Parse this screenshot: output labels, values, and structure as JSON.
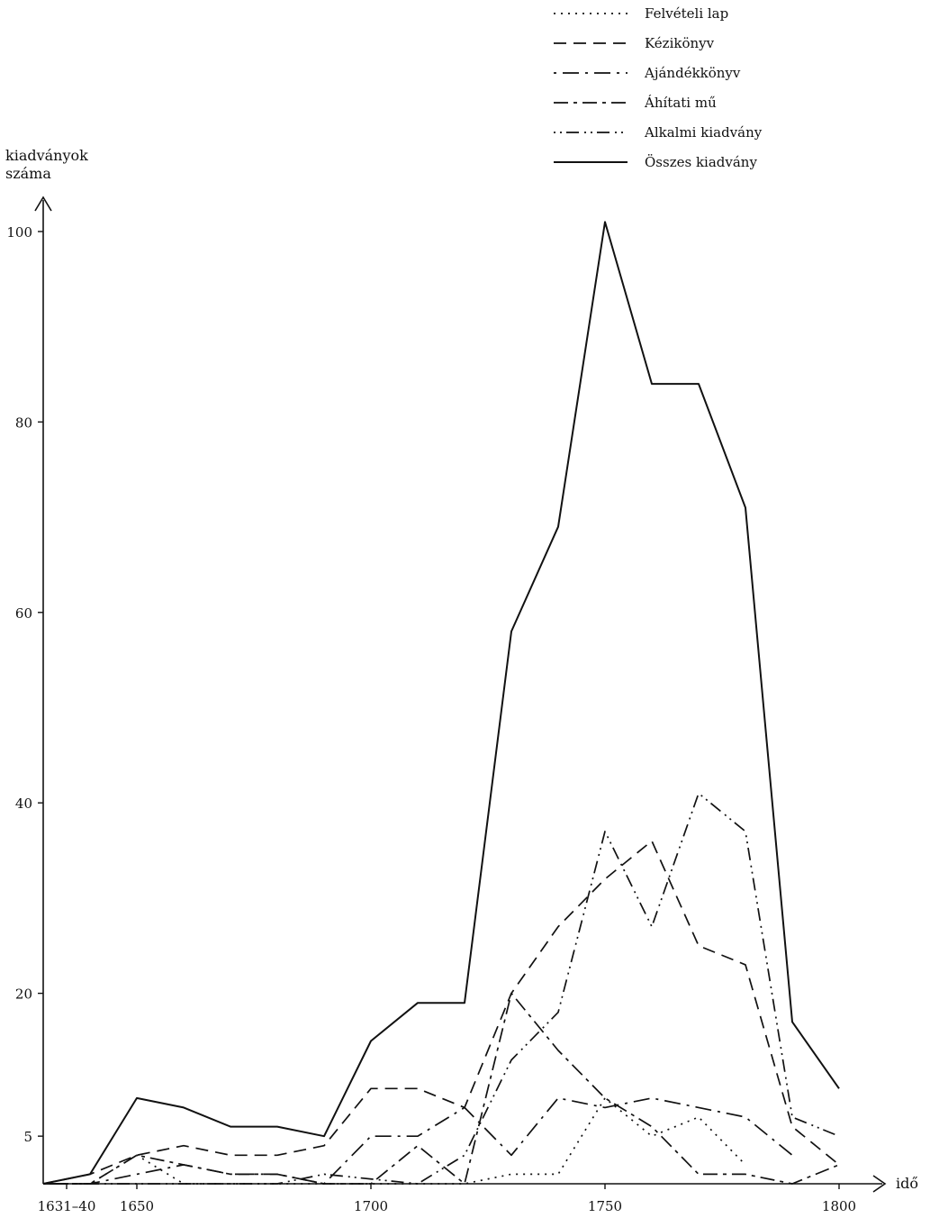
{
  "chart_data": {
    "type": "line",
    "ylabel_line1": "kiadványok",
    "ylabel_line2": "száma",
    "xlabel": "idő",
    "xlim": [
      1630,
      1800
    ],
    "ylim": [
      0,
      100
    ],
    "x_ticks": [
      {
        "value": 1635,
        "label": "1631–40"
      },
      {
        "value": 1650,
        "label": "1650"
      },
      {
        "value": 1700,
        "label": "1700"
      },
      {
        "value": 1750,
        "label": "1750"
      },
      {
        "value": 1800,
        "label": "1800"
      }
    ],
    "y_ticks": [
      {
        "value": 5,
        "label": "5"
      },
      {
        "value": 20,
        "label": "20"
      },
      {
        "value": 40,
        "label": "40"
      },
      {
        "value": 60,
        "label": "60"
      },
      {
        "value": 80,
        "label": "80"
      },
      {
        "value": 100,
        "label": "100"
      }
    ],
    "legend_position": "top-right",
    "series": [
      {
        "name": "Felvételi lap",
        "dash": "2,6",
        "points": [
          [
            1630,
            0
          ],
          [
            1640,
            0
          ],
          [
            1650,
            3
          ],
          [
            1660,
            0
          ],
          [
            1720,
            0
          ],
          [
            1730,
            1
          ],
          [
            1740,
            1
          ],
          [
            1750,
            9
          ],
          [
            1760,
            5
          ],
          [
            1770,
            7
          ],
          [
            1780,
            2
          ]
        ]
      },
      {
        "name": "Kézikönyv",
        "dash": "14,8",
        "points": [
          [
            1630,
            0
          ],
          [
            1640,
            1
          ],
          [
            1650,
            3
          ],
          [
            1660,
            4
          ],
          [
            1670,
            3
          ],
          [
            1680,
            3
          ],
          [
            1690,
            4
          ],
          [
            1700,
            10
          ],
          [
            1710,
            10
          ],
          [
            1720,
            8
          ],
          [
            1730,
            20
          ],
          [
            1740,
            27
          ],
          [
            1750,
            32
          ],
          [
            1760,
            36
          ],
          [
            1770,
            25
          ],
          [
            1780,
            23
          ],
          [
            1790,
            6
          ],
          [
            1800,
            2
          ]
        ]
      },
      {
        "name": "Ajándékkönyv",
        "dash": "3,7,18,7",
        "points": [
          [
            1630,
            0
          ],
          [
            1640,
            0
          ],
          [
            1650,
            1
          ],
          [
            1660,
            2
          ],
          [
            1670,
            1
          ],
          [
            1680,
            1
          ],
          [
            1690,
            0
          ],
          [
            1700,
            5
          ],
          [
            1710,
            5
          ],
          [
            1720,
            8
          ],
          [
            1730,
            3
          ],
          [
            1740,
            9
          ],
          [
            1750,
            8
          ],
          [
            1760,
            9
          ],
          [
            1770,
            8
          ],
          [
            1780,
            7
          ],
          [
            1790,
            3
          ]
        ]
      },
      {
        "name": "Áhítati mű",
        "dash": "16,6,4,6",
        "points": [
          [
            1630,
            0
          ],
          [
            1640,
            0
          ],
          [
            1650,
            3
          ],
          [
            1660,
            2
          ],
          [
            1670,
            1
          ],
          [
            1680,
            1
          ],
          [
            1690,
            0
          ],
          [
            1700,
            0
          ],
          [
            1710,
            4
          ],
          [
            1720,
            0
          ],
          [
            1730,
            20
          ],
          [
            1740,
            14
          ],
          [
            1750,
            9
          ],
          [
            1760,
            6
          ],
          [
            1770,
            1
          ],
          [
            1780,
            1
          ],
          [
            1790,
            0
          ],
          [
            1800,
            2
          ]
        ]
      },
      {
        "name": "Alkalmi kiadvány",
        "dash": "2,5,2,5,14,6",
        "points": [
          [
            1630,
            0
          ],
          [
            1640,
            0
          ],
          [
            1650,
            0
          ],
          [
            1660,
            0
          ],
          [
            1670,
            0
          ],
          [
            1680,
            0
          ],
          [
            1690,
            1
          ],
          [
            1710,
            0
          ],
          [
            1720,
            3
          ],
          [
            1730,
            13
          ],
          [
            1740,
            18
          ],
          [
            1750,
            37
          ],
          [
            1760,
            27
          ],
          [
            1770,
            41
          ],
          [
            1780,
            37
          ],
          [
            1790,
            7
          ],
          [
            1800,
            5
          ]
        ]
      },
      {
        "name": "Összes kiadvány",
        "dash": "",
        "points": [
          [
            1630,
            0
          ],
          [
            1640,
            1
          ],
          [
            1650,
            9
          ],
          [
            1660,
            8
          ],
          [
            1670,
            6
          ],
          [
            1680,
            6
          ],
          [
            1690,
            5
          ],
          [
            1700,
            15
          ],
          [
            1710,
            19
          ],
          [
            1720,
            19
          ],
          [
            1730,
            58
          ],
          [
            1740,
            69
          ],
          [
            1750,
            101
          ],
          [
            1760,
            84
          ],
          [
            1770,
            84
          ],
          [
            1780,
            71
          ],
          [
            1790,
            17
          ],
          [
            1800,
            10
          ]
        ]
      }
    ]
  }
}
